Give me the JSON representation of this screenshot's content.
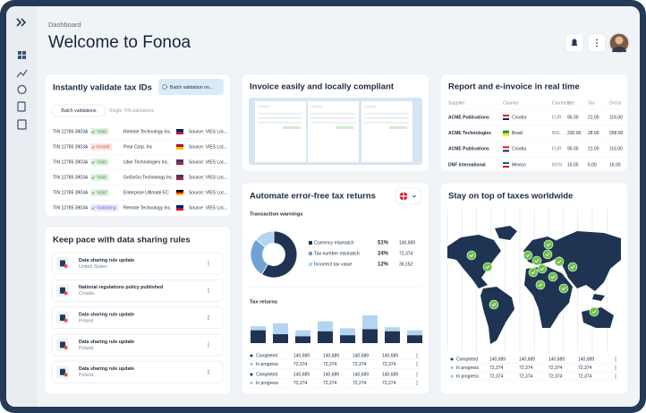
{
  "header": {
    "breadcrumb": "Dashboard",
    "title": "Welcome to Fonoa"
  },
  "tax_ids": {
    "title": "Instantly validate tax IDs",
    "button": "Batch validation on...",
    "tabs": [
      "Batch validations",
      "Single TIN validations"
    ],
    "rows": [
      {
        "tin": "TIN 12785 3903A",
        "status": "Valid",
        "status_color": "#3f9a3a",
        "company": "Remote Technology Inc.",
        "source": "Source: VIES Loc..."
      },
      {
        "tin": "TIN 12785 3903A",
        "status": "Invalid",
        "status_color": "#e0533f",
        "company": "Pear Corp. Inc",
        "source": "Source: VIES Loc..."
      },
      {
        "tin": "TIN 12785 3903A",
        "status": "Valid",
        "status_color": "#3f9a3a",
        "company": "Uber Technologies Inc.",
        "source": "Source: VIES Loc..."
      },
      {
        "tin": "TIN 12785 3903A",
        "status": "Valid",
        "status_color": "#3f9a3a",
        "company": "GoGoGo Technology Inc.",
        "source": "Source: VIES Loc..."
      },
      {
        "tin": "TIN 12785 3903A",
        "status": "Valid",
        "status_color": "#3f9a3a",
        "company": "Enterprise Ultimate EC",
        "source": "Source: VIES Loc..."
      },
      {
        "tin": "TIN 12785 3903A",
        "status": "Validating",
        "status_color": "#7a62d6",
        "company": "Remote Technology Inc.",
        "source": "Source: VIES Loc..."
      }
    ]
  },
  "data_sharing": {
    "title": "Keep pace with data sharing rules",
    "items": [
      {
        "title": "Data sharing rule update",
        "country": "United States"
      },
      {
        "title": "National regulations policy published",
        "country": "Croatia"
      },
      {
        "title": "Data sharing rule update",
        "country": "Poland"
      },
      {
        "title": "Data sharing rule update",
        "country": "Poland"
      },
      {
        "title": "Data sharing rule update",
        "country": "Poland"
      }
    ]
  },
  "invoice": {
    "title": "Invoice easily and locally compliant"
  },
  "report": {
    "title": "Report and e-invoice in real time",
    "columns": [
      "Supplier",
      "Country",
      "Currency",
      "Net",
      "Tax",
      "Gross"
    ],
    "rows": [
      [
        "ACME Publications",
        "Croatia",
        "EUR",
        "95.00",
        "21.00",
        "116.00"
      ],
      [
        "ACME Technologies",
        "Brasil",
        "BRL",
        "230.00",
        "28.00",
        "258.00"
      ],
      [
        "ACME Publications",
        "Croatia",
        "EUR",
        "95.00",
        "21.00",
        "116.00"
      ],
      [
        "DNF International",
        "Mexico",
        "MXN",
        "10.00",
        "6.00",
        "16.00"
      ]
    ]
  },
  "tax_returns": {
    "title": "Automate error-free tax returns",
    "warnings_title": "Transaction warnings",
    "warnings": [
      {
        "name": "Currency mismatch",
        "value": 51,
        "value_label": "51%",
        "count": "140,689",
        "color": "#1f3452"
      },
      {
        "name": "Tax number mismatch",
        "value": 24,
        "value_label": "24%",
        "count": "72,374",
        "color": "#6fa3d3"
      },
      {
        "name": "Incorrect tax value",
        "value": 12,
        "value_label": "12%",
        "count": "36,152",
        "color": "#b3d5f1"
      }
    ],
    "returns_title": "Tax returns",
    "bars": {
      "type": "bar",
      "completed": [
        13,
        9,
        7,
        12,
        8,
        14,
        12,
        8
      ],
      "in_progress": [
        4,
        11,
        6,
        10,
        7,
        14,
        4,
        5
      ],
      "colors": [
        "#1f3452",
        "#b3d5f1"
      ]
    },
    "table": [
      {
        "label": "Completed",
        "color": "#1f3452",
        "values": [
          "140,689",
          "140,689",
          "140,689",
          "140,689"
        ]
      },
      {
        "label": "In progress",
        "color": "#8fc0ea",
        "values": [
          "72,374",
          "72,374",
          "72,374",
          "72,374"
        ]
      },
      {
        "label": "Completed",
        "color": "#1f3452",
        "values": [
          "140,689",
          "140,689",
          "140,689",
          "140,689"
        ]
      },
      {
        "label": "In progress",
        "color": "#8fc0ea",
        "values": [
          "72,274",
          "72,274",
          "72,274",
          "72,274"
        ]
      }
    ]
  },
  "worldwide": {
    "title": "Stay on top of taxes worldwide",
    "table": [
      {
        "label": "Completed",
        "color": "#1f3452",
        "values": [
          "140,689",
          "140,689",
          "140,689",
          "140,689"
        ]
      },
      {
        "label": "In progress",
        "color": "#8fc0ea",
        "values": [
          "72,374",
          "72,374",
          "72,374",
          "72,374"
        ]
      },
      {
        "label": "In progress",
        "color": "#8fc0ea",
        "values": [
          "72,374",
          "72,374",
          "72,374",
          "72,374"
        ]
      }
    ]
  }
}
